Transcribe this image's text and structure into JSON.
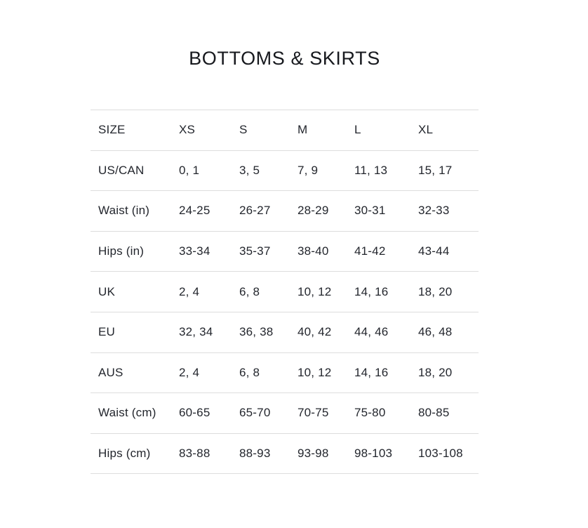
{
  "title": "BOTTOMS & SKIRTS",
  "table": {
    "columns": [
      "SIZE",
      "XS",
      "S",
      "M",
      "L",
      "XL"
    ],
    "rows": [
      {
        "label": "US/CAN",
        "values": [
          "0, 1",
          "3, 5",
          "7, 9",
          "11, 13",
          "15, 17"
        ]
      },
      {
        "label": "Waist (in)",
        "values": [
          "24-25",
          "26-27",
          "28-29",
          "30-31",
          "32-33"
        ]
      },
      {
        "label": "Hips (in)",
        "values": [
          "33-34",
          "35-37",
          "38-40",
          "41-42",
          "43-44"
        ]
      },
      {
        "label": "UK",
        "values": [
          "2, 4",
          "6, 8",
          "10, 12",
          "14, 16",
          "18, 20"
        ]
      },
      {
        "label": "EU",
        "values": [
          "32, 34",
          "36, 38",
          "40, 42",
          "44, 46",
          "46, 48"
        ]
      },
      {
        "label": "AUS",
        "values": [
          "2, 4",
          "6, 8",
          "10, 12",
          "14, 16",
          "18, 20"
        ]
      },
      {
        "label": "Waist (cm)",
        "values": [
          "60-65",
          "65-70",
          "70-75",
          "75-80",
          "80-85"
        ]
      },
      {
        "label": "Hips (cm)",
        "values": [
          "83-88",
          "88-93",
          "93-98",
          "98-103",
          "103-108"
        ]
      }
    ]
  },
  "colors": {
    "background": "#ffffff",
    "text": "#23262d",
    "title_text": "#17191e",
    "rule": "#dddddd"
  }
}
